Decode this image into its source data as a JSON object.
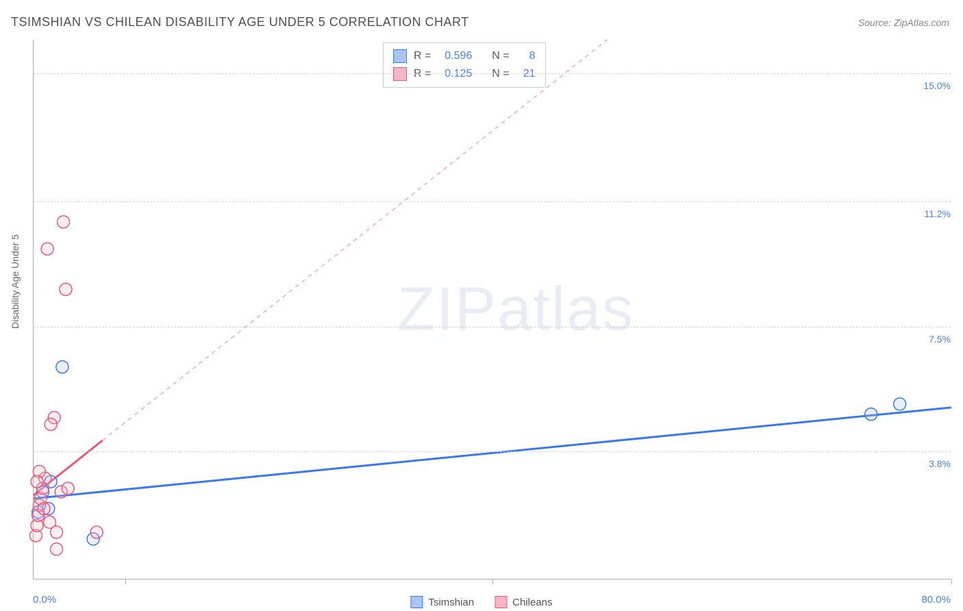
{
  "title": "TSIMSHIAN VS CHILEAN DISABILITY AGE UNDER 5 CORRELATION CHART",
  "source_label": "Source: ZipAtlas.com",
  "y_axis_label": "Disability Age Under 5",
  "watermark": {
    "bold": "ZIP",
    "light": "atlas"
  },
  "chart": {
    "type": "scatter",
    "xlim": [
      0,
      80
    ],
    "ylim": [
      0,
      16
    ],
    "x_axis_min_label": "0.0%",
    "x_axis_max_label": "80.0%",
    "y_ticks": [
      {
        "value": 3.8,
        "label": "3.8%"
      },
      {
        "value": 7.5,
        "label": "7.5%"
      },
      {
        "value": 11.2,
        "label": "11.2%"
      },
      {
        "value": 15.0,
        "label": "15.0%"
      }
    ],
    "x_tick_positions": [
      8,
      40,
      80
    ],
    "background_color": "#ffffff",
    "grid_color": "#d5d5d5",
    "marker_radius": 9,
    "marker_stroke_width": 1.5,
    "marker_fill_opacity": 0.25,
    "series": [
      {
        "name": "Tsimshian",
        "color_stroke": "#3b78e7",
        "color_fill": "#a9c4f5",
        "R": "0.596",
        "N": "8",
        "trend": {
          "x1": 0,
          "y1": 2.4,
          "x2": 80,
          "y2": 5.1,
          "dashed_after_x": null
        },
        "points": [
          {
            "x": 0.4,
            "y": 2.0
          },
          {
            "x": 0.8,
            "y": 2.6
          },
          {
            "x": 1.3,
            "y": 2.1
          },
          {
            "x": 1.5,
            "y": 2.9
          },
          {
            "x": 2.5,
            "y": 6.3
          },
          {
            "x": 5.2,
            "y": 1.2
          },
          {
            "x": 73.0,
            "y": 4.9
          },
          {
            "x": 75.5,
            "y": 5.2
          }
        ]
      },
      {
        "name": "Chileans",
        "color_stroke": "#e85a7a",
        "color_fill": "#f6b6c6",
        "R": "0.125",
        "N": "21",
        "trend": {
          "x1": 0,
          "y1": 2.5,
          "x2": 50,
          "y2": 16.0,
          "dashed_after_x": 6
        },
        "points": [
          {
            "x": 0.2,
            "y": 1.3
          },
          {
            "x": 0.3,
            "y": 1.6
          },
          {
            "x": 0.4,
            "y": 1.9
          },
          {
            "x": 0.5,
            "y": 2.2
          },
          {
            "x": 0.6,
            "y": 2.4
          },
          {
            "x": 0.8,
            "y": 2.7
          },
          {
            "x": 1.0,
            "y": 3.0
          },
          {
            "x": 0.5,
            "y": 3.2
          },
          {
            "x": 0.3,
            "y": 2.9
          },
          {
            "x": 1.4,
            "y": 1.7
          },
          {
            "x": 2.0,
            "y": 1.4
          },
          {
            "x": 2.4,
            "y": 2.6
          },
          {
            "x": 3.0,
            "y": 2.7
          },
          {
            "x": 5.5,
            "y": 1.4
          },
          {
            "x": 2.0,
            "y": 0.9
          },
          {
            "x": 1.8,
            "y": 4.8
          },
          {
            "x": 1.5,
            "y": 4.6
          },
          {
            "x": 2.8,
            "y": 8.6
          },
          {
            "x": 1.2,
            "y": 9.8
          },
          {
            "x": 2.6,
            "y": 10.6
          },
          {
            "x": 0.9,
            "y": 2.1
          }
        ]
      }
    ]
  },
  "bottom_legend": [
    {
      "label": "Tsimshian",
      "stroke": "#3b78e7",
      "fill": "#a9c4f5"
    },
    {
      "label": "Chileans",
      "stroke": "#e85a7a",
      "fill": "#f6b6c6"
    }
  ]
}
